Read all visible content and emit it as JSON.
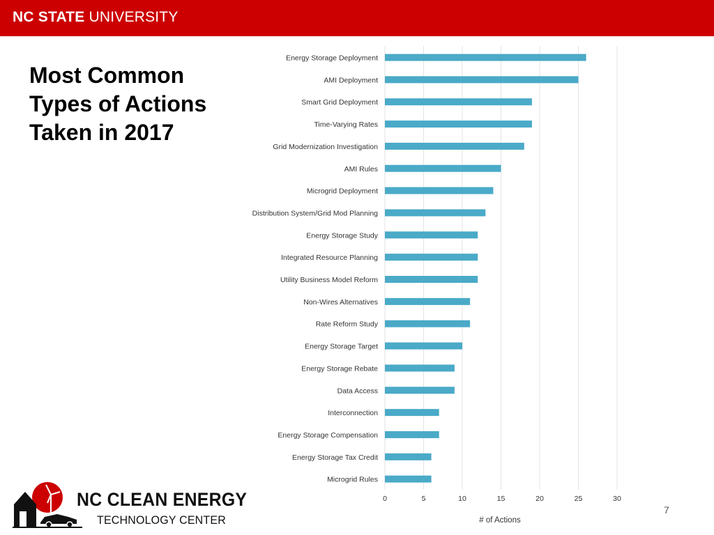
{
  "header": {
    "logo_bold": "NC STATE",
    "logo_rest": " UNIVERSITY",
    "background": "#cc0000"
  },
  "slide": {
    "title_line1": "Most Common",
    "title_line2": "Types of Actions",
    "title_line3": "Taken in 2017",
    "page_number": "7"
  },
  "footer": {
    "line1": "NC CLEAN ENERGY",
    "line2": "TECHNOLOGY CENTER",
    "logo_icon": "sun-turbine-house-car-icon",
    "accent": "#cc0000"
  },
  "chart_data": {
    "type": "bar",
    "orientation": "horizontal",
    "categories": [
      "Energy Storage Deployment",
      "AMI Deployment",
      "Smart Grid Deployment",
      "Time-Varying Rates",
      "Grid Modernization Investigation",
      "AMI Rules",
      "Microgrid Deployment",
      "Distribution System/Grid Mod Planning",
      "Energy Storage Study",
      "Integrated Resource Planning",
      "Utility Business Model Reform",
      "Non-Wires Alternatives",
      "Rate Reform Study",
      "Energy Storage Target",
      "Energy Storage Rebate",
      "Data Access",
      "Interconnection",
      "Energy Storage Compensation",
      "Energy Storage Tax Credit",
      "Microgrid Rules"
    ],
    "values": [
      26,
      25,
      19,
      19,
      18,
      15,
      14,
      13,
      12,
      12,
      12,
      11,
      11,
      10,
      9,
      9,
      7,
      7,
      6,
      6
    ],
    "xlabel": "# of Actions",
    "ylabel": "",
    "xlim": [
      0,
      30
    ],
    "xticks": [
      0,
      5,
      10,
      15,
      20,
      25,
      30
    ],
    "grid": true,
    "bar_color": "#4aaac8",
    "grid_color": "#e3e3e3"
  }
}
